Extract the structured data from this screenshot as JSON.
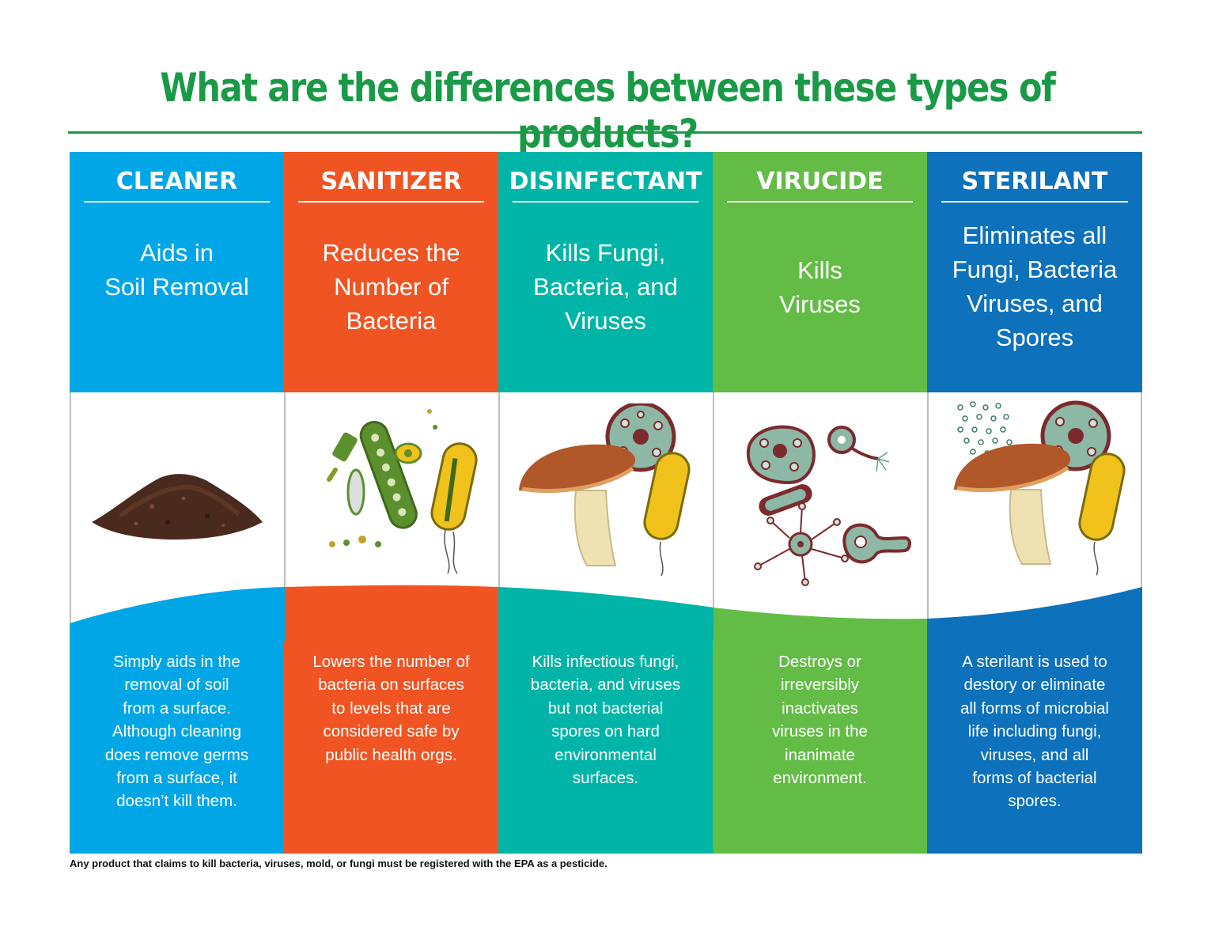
{
  "title": "What are the differences between these types of products?",
  "columns": [
    {
      "name": "CLEANER",
      "color": "#00a6e6",
      "summary_lines": [
        "Aids in",
        "Soil Removal"
      ],
      "detail_lines": [
        "Simply aids in the",
        "removal of soil",
        "from a surface.",
        "Although cleaning",
        "does remove germs",
        "from a surface, it",
        "doesn’t kill them."
      ],
      "illustration": "soil-pile"
    },
    {
      "name": "SANITIZER",
      "color": "#f05423",
      "summary_lines": [
        "Reduces the",
        "Number of",
        "Bacteria"
      ],
      "detail_lines": [
        "Lowers the number of",
        "bacteria on surfaces",
        "to levels that are",
        "considered safe by",
        "public health orgs."
      ],
      "illustration": "bacteria-group"
    },
    {
      "name": "DISINFECTANT",
      "color": "#00b5a8",
      "summary_lines": [
        "Kills Fungi,",
        "Bacteria, and",
        "Viruses"
      ],
      "detail_lines": [
        "Kills infectious fungi,",
        "bacteria, and viruses",
        "but not bacterial",
        "spores on hard",
        "environmental",
        "surfaces."
      ],
      "illustration": "fungi-bacteria-virus"
    },
    {
      "name": "VIRUCIDE",
      "color": "#63bc46",
      "summary_lines": [
        "Kills",
        "Viruses"
      ],
      "detail_lines": [
        "Destroys or",
        "irreversibly",
        "inactivates",
        "viruses in the",
        "inanimate",
        "environment."
      ],
      "illustration": "virus-group"
    },
    {
      "name": "STERILANT",
      "color": "#0d71bc",
      "summary_lines": [
        "Eliminates all",
        "Fungi, Bacteria",
        "Viruses, and",
        "Spores"
      ],
      "detail_lines": [
        "A sterilant is used to",
        "destory or eliminate",
        "all forms of microbial",
        "life including fungi,",
        "viruses, and all",
        "forms of bacterial",
        "spores."
      ],
      "illustration": "fungi-bacteria-spores"
    }
  ],
  "footnote": "Any product that claims to kill bacteria, viruses, mold, or fungi must be registered with the EPA as a pesticide."
}
